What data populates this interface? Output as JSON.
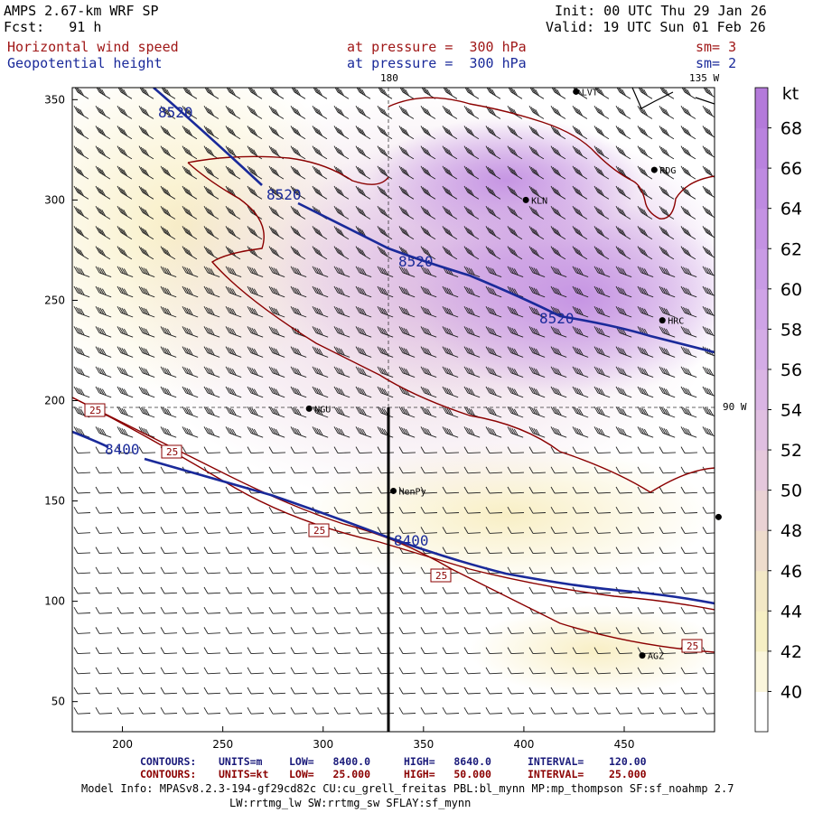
{
  "header": {
    "title": "AMPS 2.67-km WRF SP",
    "forecast": "Fcst:   91 h",
    "init": "Init: 00 UTC Thu 29 Jan 26",
    "valid": "Valid: 19 UTC Sun 01 Feb 26",
    "field1_name": "Horizontal wind speed",
    "field1_level": "at pressure =  300 hPa",
    "field1_sm": "sm= 3",
    "field2_name": "Geopotential height",
    "field2_level": "at pressure =  300 hPa",
    "field2_sm": "sm= 2"
  },
  "map_labels": {
    "lon_180": "180",
    "lon_135w": "135 W",
    "lon_90w": "90 W",
    "stations": [
      {
        "name": "LVT",
        "x": 426,
        "y": 354
      },
      {
        "name": "RDG",
        "x": 465,
        "y": 315
      },
      {
        "name": "KLN",
        "x": 401,
        "y": 300
      },
      {
        "name": "HRC",
        "x": 469,
        "y": 240
      },
      {
        "name": "NGU",
        "x": 293,
        "y": 196
      },
      {
        "name": "HenPy",
        "x": 335,
        "y": 155
      },
      {
        "name": "AGZ",
        "x": 459,
        "y": 73
      },
      {
        "name": "",
        "x": 497,
        "y": 142
      }
    ]
  },
  "contour_labels": {
    "height": [
      "8520",
      "8520",
      "8520",
      "8520",
      "8400",
      "8400"
    ],
    "speed": [
      "25",
      "25",
      "25",
      "25",
      "25"
    ]
  },
  "colorbar": {
    "unit": "kt",
    "ticks": [
      "68",
      "66",
      "64",
      "62",
      "60",
      "58",
      "56",
      "54",
      "52",
      "50",
      "48",
      "46",
      "44",
      "42",
      "40"
    ],
    "colors": [
      "#ffffff",
      "#fbf6dc",
      "#f6efc4",
      "#f3e8c6",
      "#eedccc",
      "#ead2d4",
      "#e5c8dc",
      "#e0bfe1",
      "#dab5e4",
      "#d4ace6",
      "#cfa3e6",
      "#c99be5",
      "#c492e3",
      "#be8ae1",
      "#b982de",
      "#b47ada"
    ]
  },
  "axes": {
    "x_ticks": [
      "200",
      "250",
      "300",
      "350",
      "400",
      "450"
    ],
    "y_ticks": [
      "350",
      "300",
      "250",
      "200",
      "150",
      "100",
      "50"
    ]
  },
  "footer": {
    "c1_label": "CONTOURS:",
    "c1_units": "UNITS=m",
    "c1_low": "LOW=   8400.0",
    "c1_high": "HIGH=   8640.0",
    "c1_int": "INTERVAL=    120.00",
    "c2_label": "CONTOURS:",
    "c2_units": "UNITS=kt",
    "c2_low": "LOW=   25.000",
    "c2_high": "HIGH=   50.000",
    "c2_int": "INTERVAL=    25.000",
    "info1": "Model Info: MPASv8.2.3-194-gf29cd82c CU:cu_grell_freitas PBL:bl_mynn MP:mp_thompson SF:sf_noahmp 2.7",
    "info2": "LW:rrtmg_lw SW:rrtmg_sw SFLAY:sf_mynn"
  },
  "colors": {
    "height_contour": "#1a2a9a",
    "speed_contour": "#8b0000",
    "section_line": "#000000"
  }
}
